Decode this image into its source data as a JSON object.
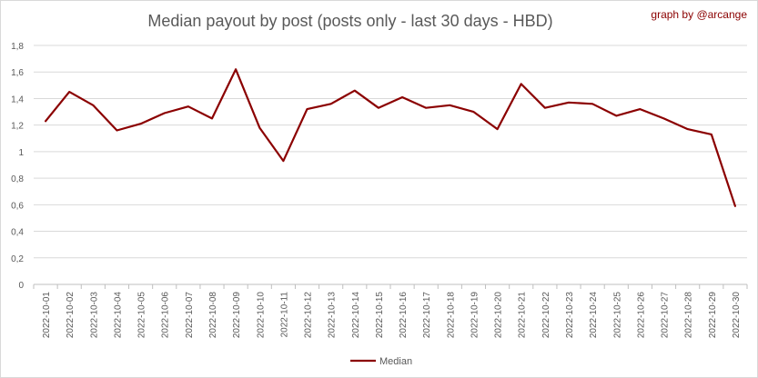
{
  "chart_data": {
    "type": "line",
    "title": "Median payout by post (posts only - last 30 days - HBD)",
    "credit": "graph by @arcange",
    "xlabel": "",
    "ylabel": "",
    "ylim": [
      0,
      1.8
    ],
    "y_ticks": [
      "0",
      "0,2",
      "0,4",
      "0,6",
      "0,8",
      "1",
      "1,2",
      "1,4",
      "1,6",
      "1,8"
    ],
    "grid": true,
    "legend_position": "bottom",
    "categories": [
      "2022-10-01",
      "2022-10-02",
      "2022-10-03",
      "2022-10-04",
      "2022-10-05",
      "2022-10-06",
      "2022-10-07",
      "2022-10-08",
      "2022-10-09",
      "2022-10-10",
      "2022-10-11",
      "2022-10-12",
      "2022-10-13",
      "2022-10-14",
      "2022-10-15",
      "2022-10-16",
      "2022-10-17",
      "2022-10-18",
      "2022-10-19",
      "2022-10-20",
      "2022-10-21",
      "2022-10-22",
      "2022-10-23",
      "2022-10-24",
      "2022-10-25",
      "2022-10-26",
      "2022-10-27",
      "2022-10-28",
      "2022-10-29",
      "2022-10-30"
    ],
    "series": [
      {
        "name": "Median",
        "color": "#8b0000",
        "values": [
          1.23,
          1.45,
          1.35,
          1.16,
          1.21,
          1.29,
          1.34,
          1.25,
          1.62,
          1.18,
          0.93,
          1.32,
          1.36,
          1.46,
          1.33,
          1.41,
          1.33,
          1.35,
          1.3,
          1.17,
          1.51,
          1.33,
          1.37,
          1.36,
          1.27,
          1.32,
          1.25,
          1.17,
          1.13,
          0.59
        ]
      }
    ]
  }
}
